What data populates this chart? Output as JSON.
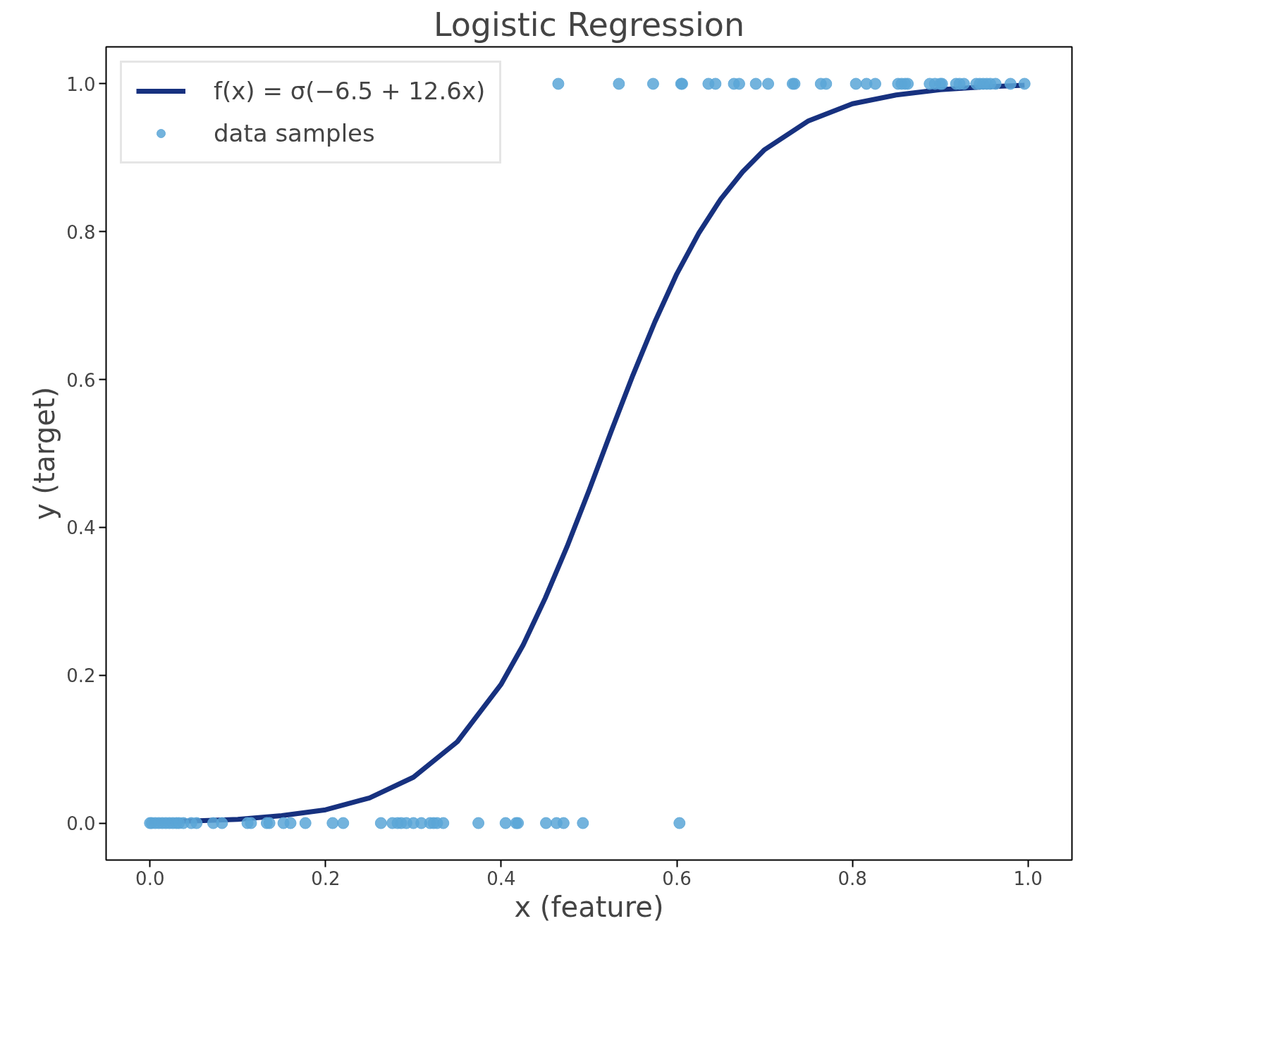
{
  "chart_data": {
    "type": "scatter",
    "title": "Logistic Regression",
    "xlabel": "x (feature)",
    "ylabel": "y (target)",
    "xlim": [
      -0.05,
      1.05
    ],
    "ylim": [
      -0.05,
      1.05
    ],
    "xticks": [
      {
        "value": 0,
        "label": "0.0"
      },
      {
        "value": 0.2,
        "label": "0.2"
      },
      {
        "value": 0.4,
        "label": "0.4"
      },
      {
        "value": 0.6,
        "label": "0.6"
      },
      {
        "value": 0.8,
        "label": "0.8"
      },
      {
        "value": 1,
        "label": "1.0"
      }
    ],
    "yticks": [
      {
        "value": 0,
        "label": "0.0"
      },
      {
        "value": 0.2,
        "label": "0.2"
      },
      {
        "value": 0.4,
        "label": "0.4"
      },
      {
        "value": 0.6,
        "label": "0.6"
      },
      {
        "value": 0.8,
        "label": "0.8"
      },
      {
        "value": 1,
        "label": "1.0"
      }
    ],
    "grid": false,
    "legend": "top left",
    "series": [
      {
        "type": "line",
        "name": "f(x) = σ(−6.5 + 12.6x)",
        "color": "#17317f",
        "line_style": "solid",
        "marker": "none",
        "x": [
          0,
          0.05,
          0.1,
          0.15,
          0.2,
          0.25,
          0.3,
          0.35,
          0.4,
          0.425,
          0.45,
          0.475,
          0.5,
          0.525,
          0.55,
          0.575,
          0.6,
          0.625,
          0.65,
          0.675,
          0.7,
          0.75,
          0.8,
          0.85,
          0.9,
          0.95,
          0.996
        ],
        "values": [
          0.002,
          0.003,
          0.005,
          0.01,
          0.018,
          0.034,
          0.062,
          0.11,
          0.188,
          0.241,
          0.304,
          0.374,
          0.45,
          0.529,
          0.606,
          0.678,
          0.743,
          0.798,
          0.844,
          0.881,
          0.911,
          0.95,
          0.973,
          0.985,
          0.992,
          0.996,
          0.998
        ]
      },
      {
        "name": "data samples",
        "color": "#5ba6d7",
        "marker": "circle",
        "x": [
          0.0,
          0.002,
          0.006,
          0.01,
          0.014,
          0.018,
          0.022,
          0.026,
          0.03,
          0.033,
          0.038,
          0.047,
          0.053,
          0.072,
          0.082,
          0.111,
          0.115,
          0.133,
          0.136,
          0.152,
          0.16,
          0.177,
          0.208,
          0.22,
          0.263,
          0.276,
          0.282,
          0.286,
          0.292,
          0.3,
          0.309,
          0.319,
          0.323,
          0.327,
          0.334,
          0.374,
          0.405,
          0.417,
          0.419,
          0.451,
          0.463,
          0.471,
          0.493,
          0.603,
          0.465,
          0.534,
          0.573,
          0.605,
          0.606,
          0.636,
          0.644,
          0.665,
          0.671,
          0.69,
          0.704,
          0.732,
          0.734,
          0.764,
          0.77,
          0.804,
          0.816,
          0.826,
          0.852,
          0.856,
          0.86,
          0.863,
          0.888,
          0.894,
          0.9,
          0.902,
          0.918,
          0.922,
          0.927,
          0.941,
          0.945,
          0.949,
          0.953,
          0.957,
          0.963,
          0.98,
          0.996
        ],
        "values": [
          0,
          0,
          0,
          0,
          0,
          0,
          0,
          0,
          0,
          0,
          0,
          0,
          0,
          0,
          0,
          0,
          0,
          0,
          0,
          0,
          0,
          0,
          0,
          0,
          0,
          0,
          0,
          0,
          0,
          0,
          0,
          0,
          0,
          0,
          0,
          0,
          0,
          0,
          0,
          0,
          0,
          0,
          0,
          0,
          1,
          1,
          1,
          1,
          1,
          1,
          1,
          1,
          1,
          1,
          1,
          1,
          1,
          1,
          1,
          1,
          1,
          1,
          1,
          1,
          1,
          1,
          1,
          1,
          1,
          1,
          1,
          1,
          1,
          1,
          1,
          1,
          1,
          1,
          1,
          1,
          1
        ]
      }
    ]
  }
}
